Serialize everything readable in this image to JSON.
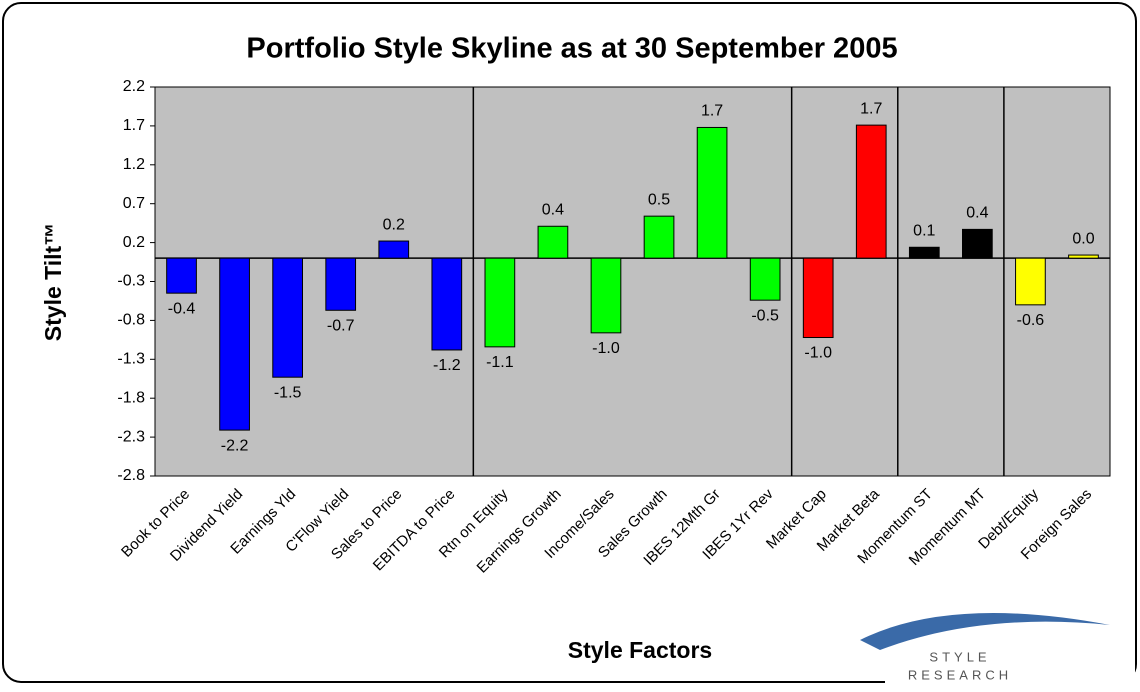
{
  "chart_data": {
    "type": "bar",
    "title": "Portfolio Style Skyline as at 30 September 2005",
    "x_label": "Style Factors",
    "y_label": "Style Tilt™",
    "categories": [
      "Book to Price",
      "Dividend Yield",
      "Earnings Yld",
      "C'Flow Yield",
      "Sales to Price",
      "EBITDA to Price",
      "Rtn on Equity",
      "Earnings Growth",
      "Income/Sales",
      "Sales Growth",
      "IBES 12Mth Gr",
      "IBES 1Yr Rev",
      "Market Cap",
      "Market Beta",
      "Momentum ST",
      "Momentum MT",
      "Debt/Equity",
      "Foreign Sales"
    ],
    "values": [
      -0.45,
      -2.21,
      -1.53,
      -0.67,
      0.22,
      -1.18,
      -1.14,
      0.41,
      -0.96,
      0.54,
      1.68,
      -0.54,
      -1.02,
      1.71,
      0.14,
      0.37,
      -0.6,
      0.04
    ],
    "value_labels": [
      "-0.4",
      "-2.2",
      "-1.5",
      "-0.7",
      "0.2",
      "-1.2",
      "-1.1",
      "0.4",
      "-1.0",
      "0.5",
      "1.7",
      "-0.5",
      "-1.0",
      "1.7",
      "0.1",
      "0.4",
      "-0.6",
      "0.0"
    ],
    "colors": [
      "#0000ff",
      "#0000ff",
      "#0000ff",
      "#0000ff",
      "#0000ff",
      "#0000ff",
      "#00ff00",
      "#00ff00",
      "#00ff00",
      "#00ff00",
      "#00ff00",
      "#00ff00",
      "#ff0000",
      "#ff0000",
      "#000000",
      "#000000",
      "#ffff00",
      "#ffff00"
    ],
    "ylim": [
      -2.8,
      2.2
    ],
    "yticks": [
      2.2,
      1.7,
      1.2,
      0.7,
      0.2,
      -0.3,
      -0.8,
      -1.3,
      -1.8,
      -2.3,
      -2.8
    ],
    "plot_background": "#c0c0c0"
  },
  "logo": {
    "line1": "STYLE",
    "line2": "RESEARCH"
  }
}
